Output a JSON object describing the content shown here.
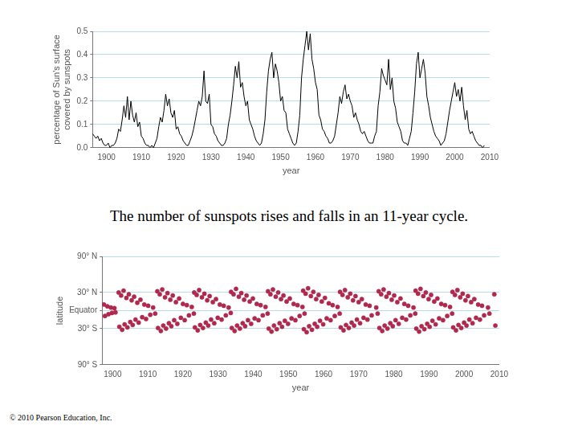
{
  "chart_data": [
    {
      "type": "line",
      "xlabel": "year",
      "ylabel": [
        "percentage of Sun's surface",
        "covered by sunspots"
      ],
      "color": "#000000",
      "grid": true,
      "xlim": [
        1896,
        2010
      ],
      "xticks": [
        1900,
        1910,
        1920,
        1930,
        1940,
        1950,
        1960,
        1970,
        1980,
        1990,
        2000,
        2010
      ],
      "ylim": [
        0,
        0.5
      ],
      "yticks": [
        {
          "value": 0,
          "label": "0.0"
        },
        0.1,
        0.2,
        0.3,
        0.4,
        0.5
      ],
      "x": [
        1896,
        1896.5,
        1897,
        1897.5,
        1898,
        1898.5,
        1899,
        1899.5,
        1900,
        1900.5,
        1901,
        1901.5,
        1902,
        1902.5,
        1903,
        1903.5,
        1904,
        1904.5,
        1905,
        1905.5,
        1906,
        1906.5,
        1907,
        1907.5,
        1908,
        1908.5,
        1909,
        1909.5,
        1910,
        1910.5,
        1911,
        1911.5,
        1912,
        1912.5,
        1913,
        1913.5,
        1914,
        1914.5,
        1915,
        1915.5,
        1916,
        1916.5,
        1917,
        1917.5,
        1918,
        1918.5,
        1919,
        1919.5,
        1920,
        1920.5,
        1921,
        1921.5,
        1922,
        1922.5,
        1923,
        1923.5,
        1924,
        1924.5,
        1925,
        1925.5,
        1926,
        1926.5,
        1927,
        1927.5,
        1928,
        1928.5,
        1929,
        1929.5,
        1930,
        1930.5,
        1931,
        1931.5,
        1932,
        1932.5,
        1933,
        1933.5,
        1934,
        1934.5,
        1935,
        1935.5,
        1936,
        1936.5,
        1937,
        1937.5,
        1938,
        1938.5,
        1939,
        1939.5,
        1940,
        1940.5,
        1941,
        1941.5,
        1942,
        1942.5,
        1943,
        1943.5,
        1944,
        1944.5,
        1945,
        1945.5,
        1946,
        1946.5,
        1947,
        1947.5,
        1948,
        1948.5,
        1949,
        1949.5,
        1950,
        1950.5,
        1951,
        1951.5,
        1952,
        1952.5,
        1953,
        1953.5,
        1954,
        1954.5,
        1955,
        1955.5,
        1956,
        1956.5,
        1957,
        1957.5,
        1958,
        1958.5,
        1959,
        1959.5,
        1960,
        1960.5,
        1961,
        1961.5,
        1962,
        1962.5,
        1963,
        1963.5,
        1964,
        1964.5,
        1965,
        1965.5,
        1966,
        1966.5,
        1967,
        1967.5,
        1968,
        1968.5,
        1969,
        1969.5,
        1970,
        1970.5,
        1971,
        1971.5,
        1972,
        1972.5,
        1973,
        1973.5,
        1974,
        1974.5,
        1975,
        1975.5,
        1976,
        1976.5,
        1977,
        1977.5,
        1978,
        1978.5,
        1979,
        1979.5,
        1980,
        1980.5,
        1981,
        1981.5,
        1982,
        1982.5,
        1983,
        1983.5,
        1984,
        1984.5,
        1985,
        1985.5,
        1986,
        1986.5,
        1987,
        1987.5,
        1988,
        1988.5,
        1989,
        1989.5,
        1990,
        1990.5,
        1991,
        1991.5,
        1992,
        1992.5,
        1993,
        1993.5,
        1994,
        1994.5,
        1995,
        1995.5,
        1996,
        1996.5,
        1997,
        1997.5,
        1998,
        1998.5,
        1999,
        1999.5,
        2000,
        2000.5,
        2001,
        2001.5,
        2002,
        2002.5,
        2003,
        2003.5,
        2004,
        2004.5,
        2005,
        2005.5,
        2006,
        2006.5,
        2007,
        2007.5,
        2008,
        2008.5
      ],
      "values": [
        0.06,
        0.05,
        0.04,
        0.05,
        0.03,
        0.04,
        0.02,
        0.01,
        0.01,
        0.02,
        0.0,
        0.01,
        0.01,
        0.02,
        0.04,
        0.08,
        0.07,
        0.12,
        0.18,
        0.13,
        0.22,
        0.12,
        0.2,
        0.14,
        0.11,
        0.15,
        0.09,
        0.11,
        0.05,
        0.04,
        0.02,
        0.01,
        0.01,
        0.0,
        0.01,
        0.0,
        0.02,
        0.04,
        0.09,
        0.13,
        0.11,
        0.16,
        0.23,
        0.18,
        0.21,
        0.15,
        0.13,
        0.16,
        0.08,
        0.09,
        0.06,
        0.05,
        0.03,
        0.02,
        0.01,
        0.01,
        0.03,
        0.05,
        0.08,
        0.12,
        0.16,
        0.2,
        0.18,
        0.22,
        0.33,
        0.2,
        0.19,
        0.23,
        0.1,
        0.09,
        0.06,
        0.05,
        0.03,
        0.02,
        0.01,
        0.01,
        0.02,
        0.04,
        0.1,
        0.14,
        0.2,
        0.27,
        0.35,
        0.3,
        0.37,
        0.26,
        0.28,
        0.22,
        0.18,
        0.2,
        0.12,
        0.1,
        0.08,
        0.05,
        0.03,
        0.02,
        0.01,
        0.02,
        0.06,
        0.12,
        0.24,
        0.33,
        0.38,
        0.41,
        0.3,
        0.36,
        0.33,
        0.28,
        0.2,
        0.22,
        0.16,
        0.15,
        0.08,
        0.06,
        0.04,
        0.02,
        0.01,
        0.02,
        0.07,
        0.14,
        0.3,
        0.38,
        0.44,
        0.5,
        0.42,
        0.49,
        0.38,
        0.34,
        0.28,
        0.25,
        0.14,
        0.12,
        0.08,
        0.07,
        0.05,
        0.04,
        0.02,
        0.02,
        0.03,
        0.05,
        0.1,
        0.15,
        0.22,
        0.19,
        0.24,
        0.27,
        0.21,
        0.23,
        0.2,
        0.18,
        0.13,
        0.15,
        0.12,
        0.1,
        0.07,
        0.06,
        0.07,
        0.05,
        0.03,
        0.02,
        0.02,
        0.02,
        0.05,
        0.07,
        0.18,
        0.24,
        0.34,
        0.31,
        0.29,
        0.27,
        0.38,
        0.25,
        0.3,
        0.2,
        0.17,
        0.11,
        0.09,
        0.07,
        0.03,
        0.02,
        0.02,
        0.01,
        0.04,
        0.07,
        0.15,
        0.24,
        0.36,
        0.41,
        0.3,
        0.34,
        0.38,
        0.32,
        0.22,
        0.18,
        0.13,
        0.1,
        0.07,
        0.05,
        0.04,
        0.03,
        0.01,
        0.02,
        0.03,
        0.06,
        0.11,
        0.16,
        0.2,
        0.24,
        0.28,
        0.22,
        0.25,
        0.2,
        0.26,
        0.18,
        0.12,
        0.16,
        0.08,
        0.06,
        0.07,
        0.05,
        0.03,
        0.02,
        0.01,
        0.01,
        0.0,
        0.01
      ]
    },
    {
      "type": "scatter",
      "xlabel": "year",
      "ylabel": "latitude",
      "color": "#b0284d",
      "marker": "circle",
      "grid": true,
      "xlim": [
        1897,
        2010
      ],
      "xticks": [
        1900,
        1910,
        1920,
        1930,
        1940,
        1950,
        1960,
        1970,
        1980,
        1990,
        2000,
        2010
      ],
      "ylim": [
        -90,
        90
      ],
      "yticks": [
        {
          "value": -90,
          "label": "90° S"
        },
        {
          "value": -30,
          "label": "30° S"
        },
        {
          "value": 0,
          "label": "Equator"
        },
        {
          "value": 30,
          "label": "30° N"
        },
        {
          "value": 90,
          "label": "90° N"
        }
      ],
      "x": [
        1897.5,
        1898.5,
        1899.5,
        1900.5,
        1897.8,
        1898.8,
        1899.8,
        1900.8,
        1901.7,
        1902.4,
        1903.1,
        1903.9,
        1904.6,
        1905.4,
        1906.1,
        1907,
        1907.9,
        1909,
        1910.1,
        1911.5,
        1901.9,
        1902.7,
        1903.4,
        1904.2,
        1905,
        1905.7,
        1906.5,
        1907.4,
        1908.4,
        1909.5,
        1910.7,
        1912.1,
        1912.7,
        1913.4,
        1914.1,
        1914.9,
        1915.6,
        1916.4,
        1917.1,
        1918,
        1918.9,
        1920,
        1921.1,
        1922.5,
        1912.9,
        1913.7,
        1914.4,
        1915.2,
        1916,
        1916.7,
        1917.5,
        1918.4,
        1919.4,
        1920.5,
        1921.7,
        1923.1,
        1923.2,
        1923.9,
        1924.6,
        1925.4,
        1926.1,
        1926.9,
        1927.6,
        1928.5,
        1929.4,
        1930.5,
        1931.6,
        1933,
        1923.4,
        1924.2,
        1924.9,
        1925.7,
        1926.5,
        1927.2,
        1928,
        1928.9,
        1929.9,
        1931,
        1932.2,
        1933.6,
        1933.7,
        1934.4,
        1935.1,
        1935.9,
        1936.6,
        1937.4,
        1938.1,
        1939,
        1939.9,
        1941,
        1942.1,
        1943.5,
        1933.9,
        1934.7,
        1935.4,
        1936.2,
        1937,
        1937.7,
        1938.5,
        1939.4,
        1940.4,
        1941.5,
        1942.7,
        1944.1,
        1944.2,
        1944.9,
        1945.6,
        1946.4,
        1947.1,
        1947.9,
        1948.6,
        1949.5,
        1950.4,
        1951.5,
        1952.6,
        1954,
        1944.4,
        1945.2,
        1945.9,
        1946.7,
        1947.5,
        1948.2,
        1949,
        1949.9,
        1950.9,
        1952,
        1953.2,
        1954.6,
        1954.2,
        1954.9,
        1955.6,
        1956.4,
        1957.1,
        1957.9,
        1958.6,
        1959.5,
        1960.4,
        1961.5,
        1962.6,
        1964,
        1954.4,
        1955.2,
        1955.9,
        1956.7,
        1957.5,
        1958.2,
        1959,
        1959.9,
        1960.9,
        1962,
        1963.2,
        1964.6,
        1964.7,
        1965.4,
        1966.1,
        1966.9,
        1967.6,
        1968.4,
        1969.1,
        1970,
        1970.9,
        1972,
        1973.1,
        1975,
        1964.9,
        1965.7,
        1966.4,
        1967.2,
        1968,
        1968.7,
        1969.5,
        1970.4,
        1971.4,
        1972.5,
        1973.7,
        1975.4,
        1975.7,
        1976.4,
        1977.1,
        1977.9,
        1978.6,
        1979.4,
        1980.1,
        1981,
        1981.9,
        1983,
        1984.1,
        1985.6,
        1975.9,
        1976.7,
        1977.4,
        1978.2,
        1979,
        1979.7,
        1980.5,
        1981.4,
        1982.4,
        1983.5,
        1984.7,
        1986.1,
        1986.2,
        1986.9,
        1987.6,
        1988.4,
        1989.1,
        1989.9,
        1990.6,
        1991.5,
        1992.4,
        1993.5,
        1994.6,
        1996,
        1986.4,
        1987.2,
        1987.9,
        1988.7,
        1989.5,
        1990.2,
        1991,
        1991.9,
        1992.9,
        1994,
        1995.2,
        1996.6,
        1996.7,
        1997.4,
        1998.1,
        1998.9,
        1999.6,
        2000.4,
        2001.1,
        2002,
        2002.9,
        2004,
        2005.1,
        2006.8,
        1996.9,
        1997.7,
        1998.4,
        1999.2,
        2000,
        2000.7,
        2001.5,
        2002.4,
        2003.4,
        2004.5,
        2005.7,
        2007.2,
        2008.6,
        2008.9
      ],
      "values": [
        10,
        7,
        5,
        4,
        -9,
        -6,
        -4,
        -3,
        30,
        25,
        33,
        21,
        27,
        17,
        23,
        13,
        18,
        10,
        8,
        5,
        -27,
        -32,
        -23,
        -28,
        -19,
        -24,
        -15,
        -20,
        -11,
        -14,
        -7,
        -5,
        32,
        27,
        35,
        22,
        29,
        18,
        25,
        14,
        20,
        11,
        9,
        6,
        -29,
        -34,
        -25,
        -30,
        -21,
        -26,
        -16,
        -22,
        -12,
        -16,
        -8,
        -5,
        30,
        26,
        34,
        22,
        28,
        17,
        24,
        14,
        19,
        10,
        8,
        5,
        -28,
        -33,
        -24,
        -29,
        -20,
        -25,
        -15,
        -21,
        -12,
        -15,
        -8,
        -4,
        31,
        27,
        36,
        23,
        29,
        18,
        25,
        15,
        20,
        11,
        9,
        6,
        -29,
        -34,
        -25,
        -30,
        -21,
        -26,
        -16,
        -22,
        -13,
        -16,
        -8,
        -5,
        32,
        27,
        35,
        23,
        30,
        19,
        25,
        15,
        20,
        11,
        9,
        6,
        -30,
        -35,
        -25,
        -31,
        -21,
        -27,
        -17,
        -22,
        -13,
        -16,
        -9,
        -5,
        33,
        28,
        37,
        24,
        31,
        19,
        26,
        15,
        21,
        12,
        9,
        6,
        -31,
        -36,
        -26,
        -32,
        -22,
        -27,
        -17,
        -23,
        -13,
        -16,
        -9,
        -5,
        31,
        26,
        34,
        22,
        28,
        17,
        24,
        14,
        19,
        10,
        8,
        5,
        -28,
        -33,
        -24,
        -29,
        -20,
        -25,
        -15,
        -21,
        -12,
        -15,
        -8,
        -5,
        32,
        27,
        35,
        23,
        29,
        18,
        25,
        14,
        20,
        11,
        8,
        5,
        -29,
        -34,
        -25,
        -30,
        -21,
        -26,
        -16,
        -22,
        -12,
        -15,
        -8,
        -5,
        33,
        28,
        36,
        24,
        30,
        19,
        26,
        15,
        20,
        11,
        9,
        6,
        -30,
        -35,
        -26,
        -31,
        -22,
        -27,
        -17,
        -23,
        -13,
        -16,
        -9,
        -5,
        31,
        26,
        34,
        22,
        28,
        17,
        24,
        14,
        19,
        10,
        8,
        5,
        -28,
        -33,
        -24,
        -29,
        -20,
        -25,
        -15,
        -21,
        -12,
        -15,
        -8,
        -5,
        27,
        -25
      ]
    }
  ],
  "caption": "The number of sunspots rises and falls in an 11-year cycle.",
  "credit": "© 2010 Pearson Education, Inc."
}
